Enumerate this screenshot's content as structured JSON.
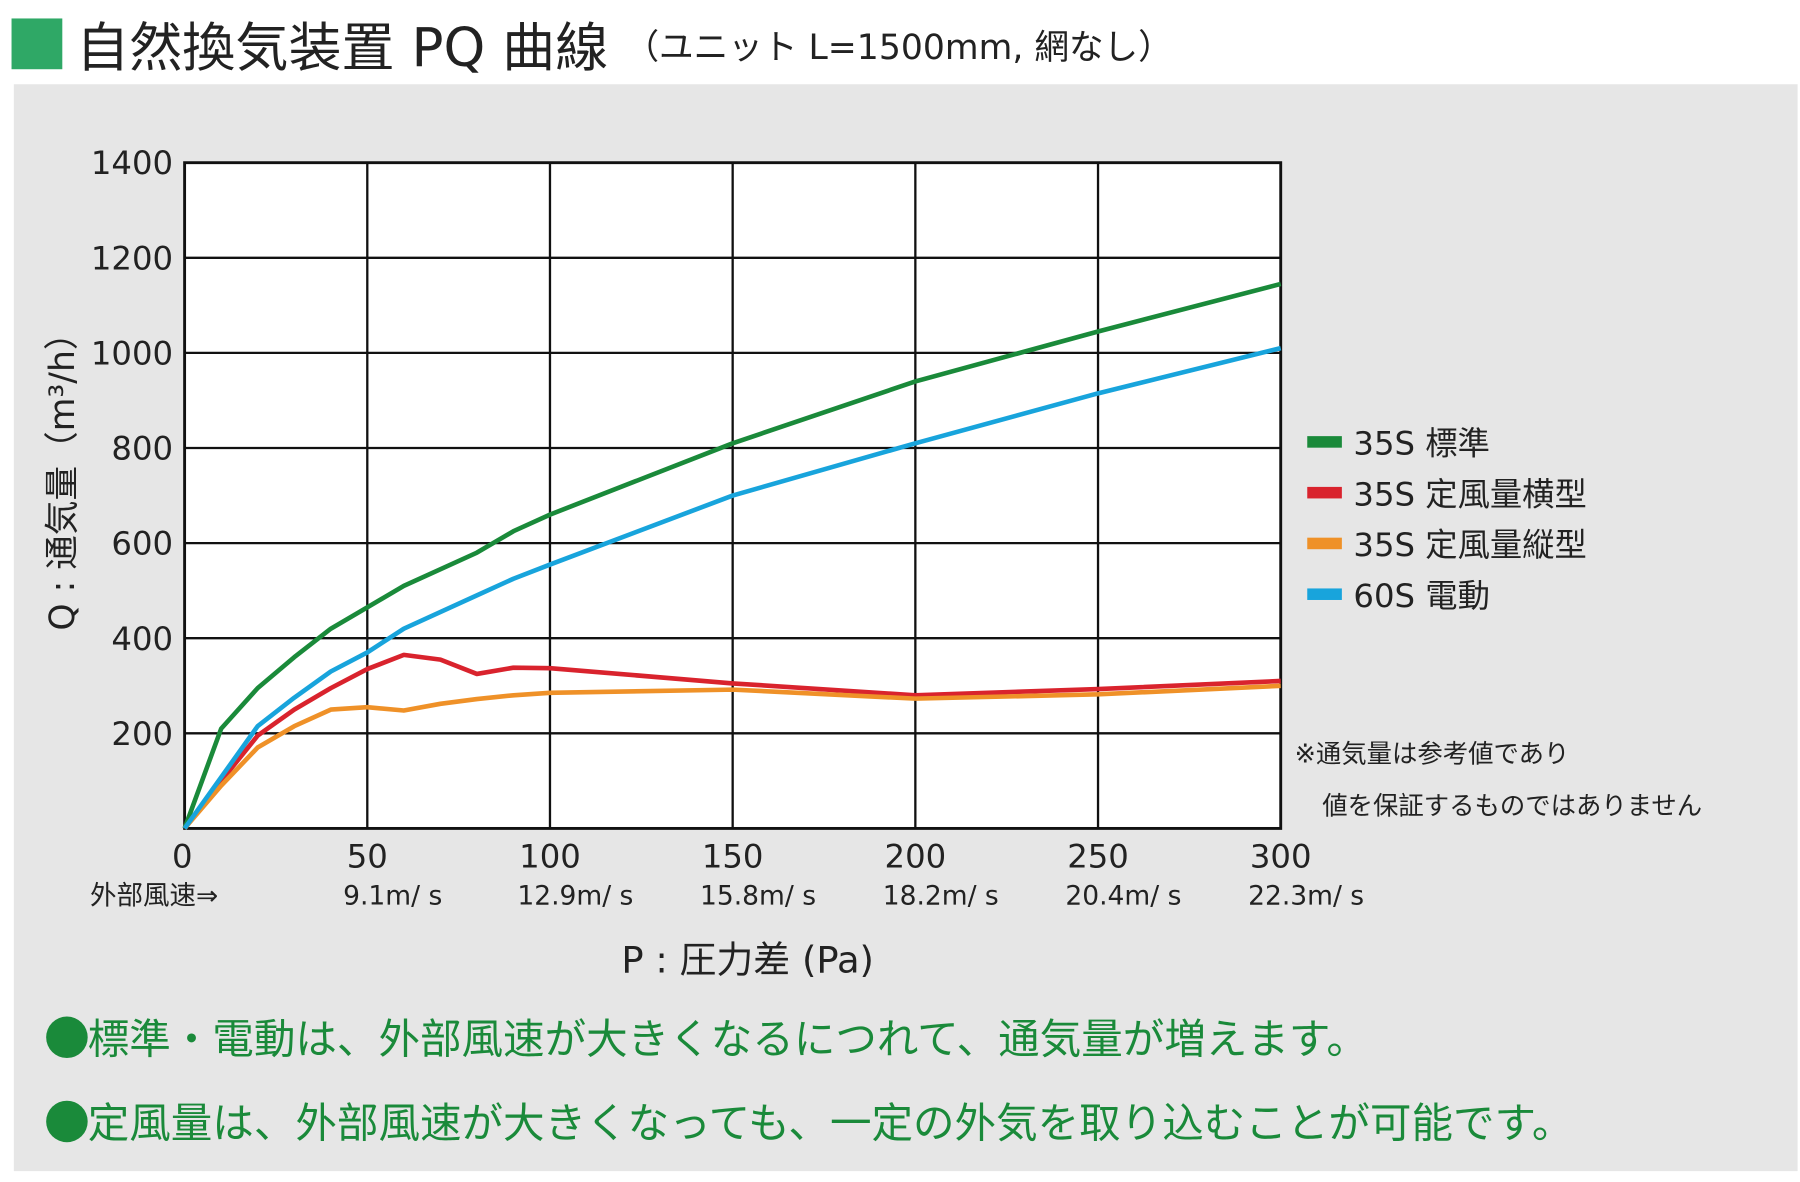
{
  "title": {
    "main": "自然換気装置 PQ 曲線",
    "sub": "（ユニット L=1500mm, 網なし）"
  },
  "chart_data": {
    "type": "line",
    "title": "自然換気装置 PQ 曲線",
    "xlabel": "P : 圧力差 (Pa)",
    "ylabel": "Q : 通気量（m³/h）",
    "xlim": [
      0,
      300
    ],
    "ylim": [
      0,
      1400
    ],
    "xticks": [
      0,
      50,
      100,
      150,
      200,
      250,
      300
    ],
    "yticks": [
      200,
      400,
      600,
      800,
      1000,
      1200,
      1400
    ],
    "grid": true,
    "legend_position": "right",
    "speed_label": "外部風速⇒",
    "speed_ticks": [
      "9.1m/ s",
      "12.9m/ s",
      "15.8m/ s",
      "18.2m/ s",
      "20.4m/ s",
      "22.3m/ s"
    ],
    "note": [
      "※通気量は参考値であり",
      "値を保証するものではありません"
    ],
    "series": [
      {
        "name": "35S 標準",
        "color": "#1a8a3a",
        "x": [
          0,
          10,
          20,
          30,
          40,
          50,
          60,
          80,
          90,
          100,
          150,
          200,
          250,
          300
        ],
        "y": [
          0,
          210,
          295,
          360,
          420,
          465,
          510,
          580,
          625,
          660,
          810,
          940,
          1045,
          1145
        ]
      },
      {
        "name": "35S 定風量横型",
        "color": "#d9232d",
        "x": [
          0,
          10,
          20,
          30,
          40,
          50,
          60,
          70,
          80,
          90,
          100,
          150,
          200,
          250,
          300
        ],
        "y": [
          0,
          100,
          195,
          250,
          295,
          335,
          365,
          355,
          325,
          338,
          337,
          305,
          280,
          293,
          310
        ]
      },
      {
        "name": "35S 定風量縦型",
        "color": "#ef9128",
        "x": [
          0,
          10,
          20,
          30,
          40,
          50,
          60,
          70,
          80,
          90,
          100,
          150,
          200,
          250,
          300
        ],
        "y": [
          0,
          90,
          170,
          215,
          250,
          255,
          248,
          262,
          272,
          280,
          285,
          292,
          273,
          282,
          300
        ]
      },
      {
        "name": "60S 電動",
        "color": "#18a4dc",
        "x": [
          0,
          20,
          30,
          40,
          50,
          60,
          80,
          90,
          100,
          150,
          200,
          250,
          300
        ],
        "y": [
          0,
          215,
          275,
          330,
          370,
          420,
          490,
          525,
          555,
          700,
          810,
          915,
          1010
        ]
      }
    ]
  },
  "bullets": [
    "標準・電動は、外部風速が大きくなるにつれて、通気量が増えます。",
    "定風量は、外部風速が大きくなっても、一定の外気を取り込むことが可能です。"
  ]
}
